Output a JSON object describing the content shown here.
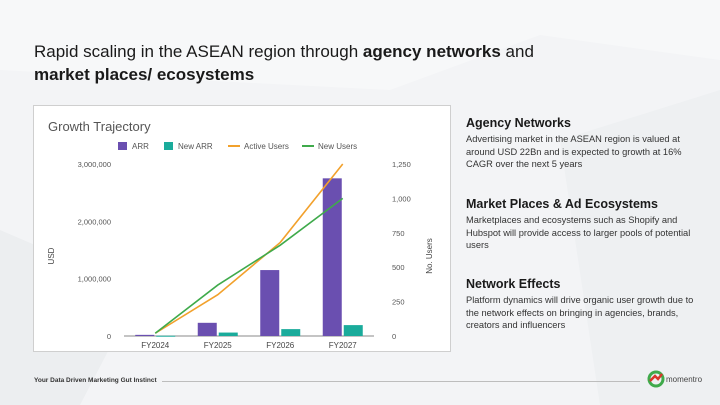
{
  "slide": {
    "title_part1": "Rapid scaling in the ASEAN region through ",
    "title_bold1": "agency networks",
    "title_part2": " and",
    "title_bold2": "market places/ ecosystems"
  },
  "sections": [
    {
      "heading": "Agency Networks",
      "body": "Advertising market in the ASEAN region is valued at around  USD 22Bn and is expected to growth at 16% CAGR over the next 5 years"
    },
    {
      "heading": "Market Places & Ad Ecosystems",
      "body": "Marketplaces and ecosystems such as Shopify and Hubspot will provide access to larger pools of potential users"
    },
    {
      "heading": "Network Effects",
      "body": "Platform dynamics will drive organic user growth due to the network effects on bringing in agencies, brands, creators and influencers"
    }
  ],
  "footer": {
    "tagline": "Your Data Driven Marketing Gut Instinct",
    "brand": "momentro"
  },
  "colors": {
    "arr": "#6a4fb0",
    "new_arr": "#1aab9b",
    "active_users": "#f2a12c",
    "new_users": "#3faa4b"
  },
  "chart_data": {
    "type": "bar",
    "title": "Growth Trajectory",
    "categories": [
      "FY2024",
      "FY2025",
      "FY2026",
      "FY2027"
    ],
    "ylabel": "USD",
    "y2label": "No. Users",
    "ylim": [
      0,
      3000000
    ],
    "y2lim": [
      0,
      1250
    ],
    "yticks": [
      "0",
      "1,000,000",
      "2,000,000",
      "3,000,000"
    ],
    "yticks_values": [
      0,
      1000000,
      2000000,
      3000000
    ],
    "y2ticks": [
      "0",
      "250",
      "500",
      "750",
      "1,000",
      "1,250"
    ],
    "y2ticks_values": [
      0,
      250,
      500,
      750,
      1000,
      1250
    ],
    "bar_series": [
      {
        "name": "ARR",
        "values": [
          20000,
          230000,
          1150000,
          2750000
        ]
      },
      {
        "name": "New ARR",
        "values": [
          5000,
          60000,
          120000,
          190000
        ]
      }
    ],
    "line_series": [
      {
        "name": "Active Users",
        "values": [
          20,
          300,
          680,
          1250
        ]
      },
      {
        "name": "New Users",
        "values": [
          20,
          370,
          660,
          1000
        ]
      }
    ],
    "legend": [
      "ARR",
      "New ARR",
      "Active Users",
      "New Users"
    ]
  }
}
